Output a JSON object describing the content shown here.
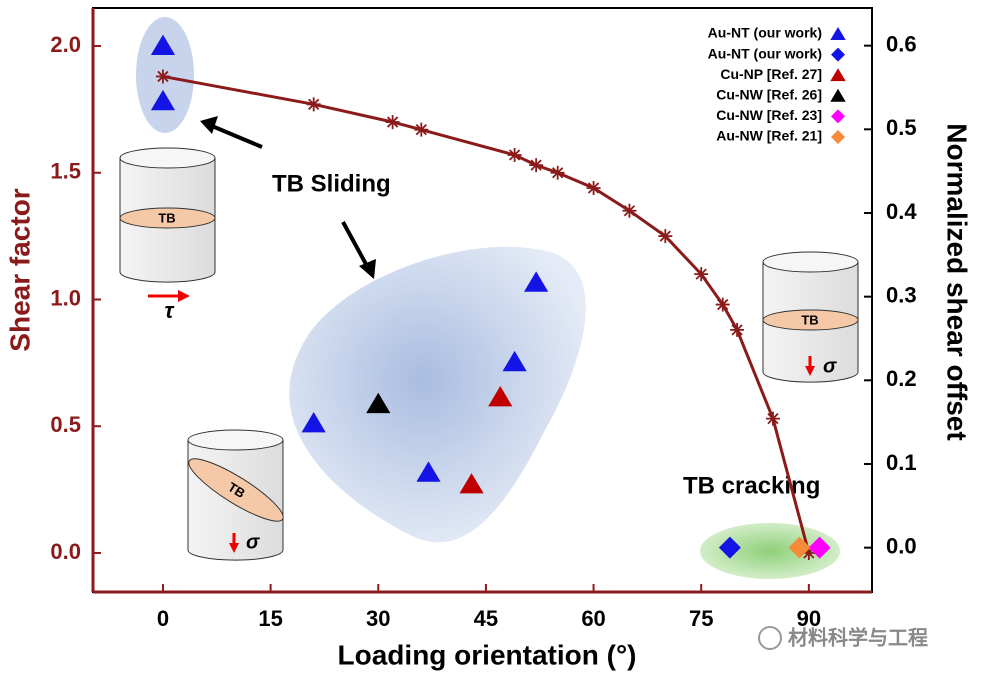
{
  "chart_data": {
    "type": "scatter",
    "x_label": "Loading orientation (°)",
    "y_label": "Shear factor",
    "y2_label": "Normalized shear offset",
    "xlim": [
      -9.75,
      98.8
    ],
    "ylim": [
      -0.154,
      2.15
    ],
    "y2lim": [
      -0.053,
      0.645
    ],
    "xticks": [
      0,
      15,
      30,
      45,
      60,
      75,
      90
    ],
    "yticks": [
      {
        "value": 0,
        "label": "0.0"
      },
      0.5,
      {
        "value": 1,
        "label": "1.0"
      },
      1.5,
      {
        "value": 2,
        "label": "2.0"
      }
    ],
    "y2ticks": [
      {
        "value": 0,
        "label": "0.0"
      },
      0.1,
      0.2,
      0.3,
      0.4,
      0.5,
      0.6
    ],
    "line": {
      "color": "#8b1a1a",
      "marker": "asterisk",
      "x": [
        0,
        21,
        32,
        36,
        49,
        52,
        55,
        60,
        65,
        70,
        75,
        78,
        80,
        85,
        90
      ],
      "values": [
        1.88,
        1.77,
        1.7,
        1.67,
        1.57,
        1.53,
        1.5,
        1.44,
        1.35,
        1.25,
        1.1,
        0.98,
        0.88,
        0.53,
        0
      ]
    },
    "series": [
      {
        "name": "Au-NT (our work)",
        "color": "#1414e6",
        "marker": "triangle",
        "axis": "y2",
        "x": [
          0,
          0,
          21,
          37,
          49,
          52
        ],
        "values": [
          0.6,
          0.534,
          0.149,
          0.09,
          0.222,
          0.317
        ]
      },
      {
        "name": "Au-NT (our work)",
        "color": "#1414e6",
        "marker": "diamond",
        "axis": "y2",
        "x": [
          79
        ],
        "values": [
          0
        ]
      },
      {
        "name": "Cu-NP [Ref. 27]",
        "color": "#c00000",
        "marker": "triangle",
        "axis": "y2",
        "x": [
          43,
          47
        ],
        "values": [
          0.076,
          0.18
        ]
      },
      {
        "name": "Cu-NW [Ref. 26]",
        "color": "#000000",
        "marker": "triangle",
        "axis": "y2",
        "x": [
          30
        ],
        "values": [
          0.172
        ]
      },
      {
        "name": "Cu-NW [Ref. 23]",
        "color": "#ff00ff",
        "marker": "diamond",
        "axis": "y2",
        "x": [
          91.5
        ],
        "values": [
          0
        ]
      },
      {
        "name": "Au-NW [Ref. 21]",
        "color": "#f58a3a",
        "marker": "diamond",
        "axis": "y2",
        "x": [
          88.7
        ],
        "values": [
          0
        ]
      }
    ],
    "annotations": [
      "TB Sliding",
      "TB cracking",
      "TB",
      "TB",
      "TB",
      "τ",
      "σ",
      "σ"
    ],
    "watermark": "材料科学与工程"
  }
}
